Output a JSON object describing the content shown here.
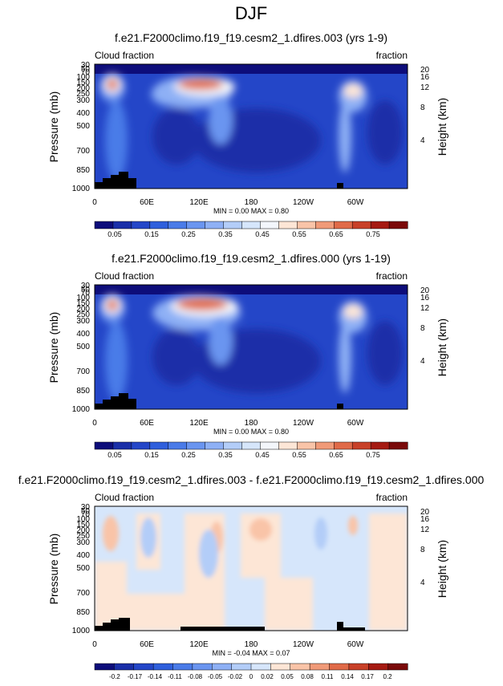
{
  "page_title": "DJF",
  "chart_data": [
    {
      "type": "heatmap",
      "title": "f.e21.F2000climo.f19_f19.cesm2_1.dfires.003 (yrs 1-9)",
      "left_label": "Cloud fraction",
      "right_label": "fraction",
      "ylabel": "Pressure (mb)",
      "ylabel_right": "Height (km)",
      "xticks": [
        "0",
        "60E",
        "120E",
        "180",
        "120W",
        "60W"
      ],
      "yticks": [
        "30",
        "50",
        "70",
        "100",
        "150",
        "200",
        "250",
        "300",
        "400",
        "500",
        "700",
        "850",
        "1000"
      ],
      "right_ticks": [
        "20",
        "16",
        "12",
        "8",
        "4"
      ],
      "stats": "MIN =   0.00   MAX =   0.80",
      "colorbar_labels": [
        "0.05",
        "0.15",
        "0.25",
        "0.35",
        "0.45",
        "0.55",
        "0.65",
        "0.75"
      ],
      "min": 0.0,
      "max": 0.8
    },
    {
      "type": "heatmap",
      "title": "f.e21.F2000climo.f19_f19.cesm2_1.dfires.000 (yrs 1-19)",
      "left_label": "Cloud fraction",
      "right_label": "fraction",
      "ylabel": "Pressure (mb)",
      "ylabel_right": "Height (km)",
      "xticks": [
        "0",
        "60E",
        "120E",
        "180",
        "120W",
        "60W"
      ],
      "yticks": [
        "30",
        "50",
        "70",
        "100",
        "150",
        "200",
        "250",
        "300",
        "400",
        "500",
        "700",
        "850",
        "1000"
      ],
      "right_ticks": [
        "20",
        "16",
        "12",
        "8",
        "4"
      ],
      "stats": "MIN =   0.00   MAX =   0.80",
      "colorbar_labels": [
        "0.05",
        "0.15",
        "0.25",
        "0.35",
        "0.45",
        "0.55",
        "0.65",
        "0.75"
      ],
      "min": 0.0,
      "max": 0.8
    },
    {
      "type": "heatmap",
      "title": "f.e21.F2000climo.f19_f19.cesm2_1.dfires.003 - f.e21.F2000climo.f19_f19.cesm2_1.dfires.000",
      "left_label": "Cloud fraction",
      "right_label": "fraction",
      "ylabel": "Pressure (mb)",
      "ylabel_right": "Height (km)",
      "xticks": [
        "0",
        "60E",
        "120E",
        "180",
        "120W",
        "60W"
      ],
      "yticks": [
        "30",
        "50",
        "70",
        "100",
        "150",
        "200",
        "250",
        "300",
        "400",
        "500",
        "700",
        "850",
        "1000"
      ],
      "right_ticks": [
        "20",
        "16",
        "12",
        "8",
        "4"
      ],
      "stats": "MIN =  -0.04   MAX =   0.07",
      "colorbar_labels": [
        "-0.2",
        "-0.17",
        "-0.14",
        "-0.11",
        "-0.08",
        "-0.05",
        "-0.02",
        "0",
        "0.02",
        "0.05",
        "0.08",
        "0.11",
        "0.14",
        "0.17",
        "0.2"
      ],
      "min": -0.04,
      "max": 0.07
    }
  ],
  "colors": {
    "seq_scale": [
      "#0d0d7a",
      "#1a2fa8",
      "#2446c8",
      "#2f5fdc",
      "#4a7be8",
      "#6a95f0",
      "#8eb0f5",
      "#b3cdf8",
      "#d6e6fb",
      "#f3f6fb",
      "#fde6d6",
      "#f9c4a8",
      "#f09a78",
      "#e06a48",
      "#c84028",
      "#a51a12",
      "#7a0a0a"
    ],
    "div_scale": [
      "#0d0d7a",
      "#1a2fa8",
      "#2446c8",
      "#2f5fdc",
      "#4a7be8",
      "#6a95f0",
      "#8eb0f5",
      "#b3cdf8",
      "#d6e6fb",
      "#fde6d6",
      "#f9c4a8",
      "#f09a78",
      "#e06a48",
      "#c84028",
      "#a51a12",
      "#7a0a0a"
    ]
  }
}
